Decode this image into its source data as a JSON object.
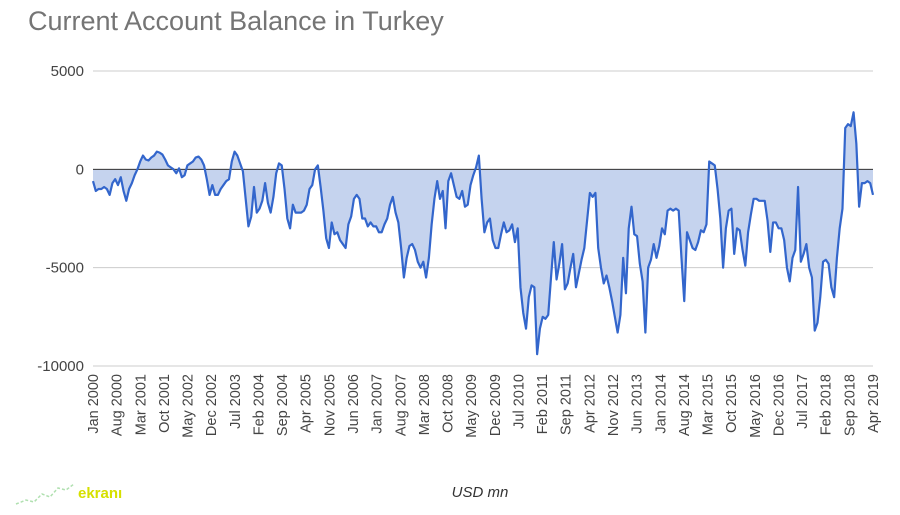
{
  "chart_data": {
    "type": "area",
    "title": "Current Account Balance in Turkey",
    "xlabel": "USD mn",
    "ylabel": "",
    "ylim": [
      -10000,
      5000
    ],
    "yticks": [
      5000,
      0,
      -5000,
      -10000
    ],
    "grid": true,
    "legend": "none",
    "x_start": "Jan 2000",
    "x_end": "Apr 2019",
    "xtick_labels": [
      "Jan 2000",
      "Aug 2000",
      "Mar 2001",
      "Oct 2001",
      "May 2002",
      "Dec 2002",
      "Jul 2003",
      "Feb 2004",
      "Sep 2004",
      "Apr 2005",
      "Nov 2005",
      "Jun 2006",
      "Jan 2007",
      "Aug 2007",
      "Mar 2008",
      "Oct 2008",
      "May 2009",
      "Dec 2009",
      "Jul 2010",
      "Feb 2011",
      "Sep 2011",
      "Apr 2012",
      "Nov 2012",
      "Jun 2013",
      "Jan 2014",
      "Aug 2014",
      "Mar 2015",
      "Oct 2015",
      "May 2016",
      "Dec 2016",
      "Jul 2017",
      "Feb 2018",
      "Sep 2018",
      "Apr 2019"
    ],
    "series": [
      {
        "line_color": "#3366cc",
        "fill_color": "#c5d3ee",
        "values": [
          -600,
          -1100,
          -1000,
          -1000,
          -900,
          -1000,
          -1300,
          -700,
          -500,
          -800,
          -400,
          -1100,
          -1600,
          -1000,
          -700,
          -300,
          0,
          400,
          700,
          500,
          450,
          600,
          700,
          900,
          850,
          750,
          500,
          200,
          100,
          0,
          -200,
          50,
          -400,
          -300,
          200,
          300,
          400,
          600,
          650,
          500,
          200,
          -500,
          -1300,
          -800,
          -1300,
          -1300,
          -1000,
          -800,
          -600,
          -500,
          400,
          900,
          700,
          300,
          -100,
          -1500,
          -2900,
          -2400,
          -900,
          -2200,
          -2000,
          -1600,
          -700,
          -1700,
          -2200,
          -1400,
          -200,
          300,
          200,
          -1000,
          -2500,
          -3000,
          -1800,
          -2200,
          -2200,
          -2200,
          -2100,
          -1800,
          -1000,
          -800,
          0,
          200,
          -900,
          -2100,
          -3500,
          -4000,
          -2700,
          -3300,
          -3200,
          -3600,
          -3800,
          -4000,
          -2800,
          -2400,
          -1500,
          -1300,
          -1500,
          -2500,
          -2500,
          -2900,
          -2700,
          -2900,
          -2900,
          -3200,
          -3200,
          -2800,
          -2500,
          -1800,
          -1400,
          -2200,
          -2700,
          -4000,
          -5500,
          -4500,
          -3900,
          -3800,
          -4100,
          -4700,
          -5000,
          -4700,
          -5500,
          -4500,
          -2800,
          -1500,
          -600,
          -1500,
          -1100,
          -3000,
          -600,
          -200,
          -800,
          -1400,
          -1500,
          -1100,
          -1900,
          -1800,
          -800,
          -300,
          100,
          700,
          -1500,
          -3200,
          -2700,
          -2500,
          -3600,
          -4000,
          -4000,
          -3300,
          -2700,
          -3200,
          -3100,
          -2800,
          -3700,
          -3000,
          -6000,
          -7300,
          -8100,
          -6500,
          -5900,
          -6000,
          -9400,
          -8100,
          -7500,
          -7600,
          -7400,
          -5500,
          -3700,
          -5600,
          -4800,
          -3800,
          -6100,
          -5800,
          -5000,
          -4300,
          -6000,
          -5300,
          -4600,
          -4000,
          -2600,
          -1200,
          -1400,
          -1200,
          -4000,
          -5000,
          -5800,
          -5400,
          -6000,
          -6700,
          -7500,
          -8300,
          -7400,
          -4500,
          -6300,
          -3000,
          -1900,
          -3300,
          -3400,
          -4800,
          -5700,
          -8300,
          -5000,
          -4600,
          -3800,
          -4500,
          -3900,
          -3000,
          -3300,
          -2100,
          -2000,
          -2100,
          -2000,
          -2100,
          -4500,
          -6700,
          -3200,
          -3600,
          -4000,
          -4100,
          -3700,
          -3100,
          -3200,
          -2800,
          400,
          300,
          200,
          -1000,
          -2500,
          -5000,
          -3000,
          -2100,
          -2000,
          -4300,
          -3000,
          -3100,
          -4100,
          -4900,
          -3200,
          -2300,
          -1500,
          -1500,
          -1600,
          -1600,
          -1600,
          -2600,
          -4200,
          -2700,
          -2700,
          -3000,
          -3000,
          -3600,
          -5000,
          -5700,
          -4500,
          -4100,
          -900,
          -4700,
          -4300,
          -3800,
          -5000,
          -5500,
          -8200,
          -7800,
          -6500,
          -4700,
          -4600,
          -4800,
          -6000,
          -6500,
          -4500,
          -3000,
          -2000,
          2100,
          2300,
          2200,
          2900,
          1300,
          -1900,
          -700,
          -700,
          -600,
          -700,
          -1300
        ]
      }
    ]
  },
  "watermark": {
    "text": "ekranı"
  }
}
